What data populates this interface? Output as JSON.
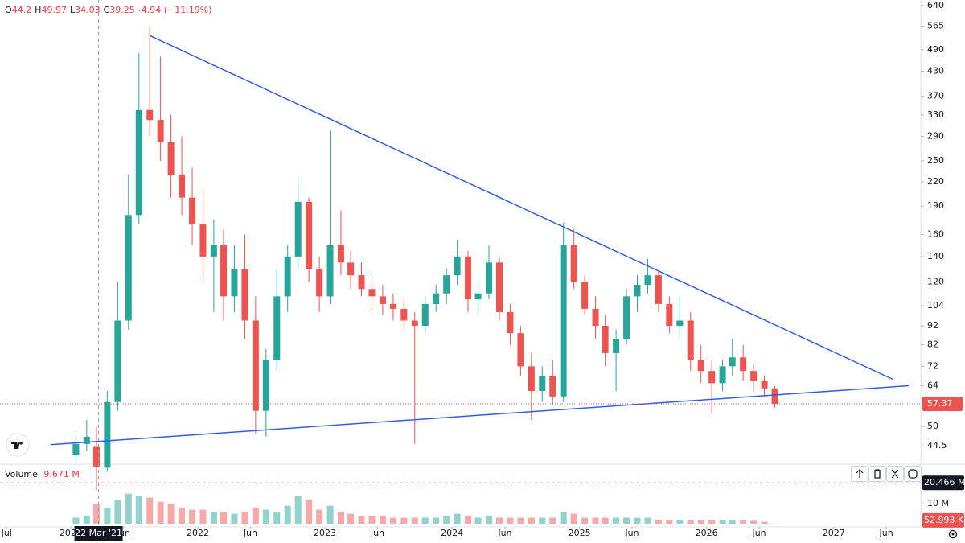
{
  "chart_data": {
    "type": "candlestick",
    "ohlc_legend": [
      {
        "key": "O",
        "value": "44.2"
      },
      {
        "key": "H",
        "value": "49.97"
      },
      {
        "key": "L",
        "value": "34.03"
      },
      {
        "key": "C",
        "value": "39.25"
      }
    ],
    "change_text": "-4.94 (−11.19%)",
    "x": [
      "2021-01",
      "2021-02",
      "2021-03",
      "2021-04",
      "2021-05",
      "2021-06",
      "2021-07",
      "2021-08",
      "2021-09",
      "2021-10",
      "2021-11",
      "2021-12",
      "2022-01",
      "2022-02",
      "2022-03",
      "2022-04",
      "2022-05",
      "2022-06",
      "2022-07",
      "2022-08",
      "2022-09",
      "2022-10",
      "2022-11",
      "2022-12",
      "2023-01",
      "2023-02",
      "2023-03",
      "2023-04",
      "2023-05",
      "2023-06",
      "2023-07",
      "2023-08",
      "2023-09",
      "2023-10",
      "2023-11",
      "2023-12",
      "2024-01",
      "2024-02",
      "2024-03",
      "2024-04",
      "2024-05",
      "2024-06",
      "2024-07",
      "2024-08",
      "2024-09",
      "2024-10",
      "2024-11",
      "2024-12",
      "2025-01",
      "2025-02",
      "2025-03",
      "2025-04",
      "2025-05",
      "2025-06",
      "2025-07",
      "2025-08",
      "2025-09",
      "2025-10",
      "2025-11",
      "2025-12",
      "2026-01",
      "2026-02",
      "2026-03",
      "2026-04",
      "2026-05",
      "2026-06",
      "2026-07"
    ],
    "open": [
      42,
      45,
      44.2,
      39,
      58,
      95,
      180,
      340,
      320,
      280,
      230,
      200,
      170,
      140,
      150,
      110,
      130,
      95,
      55,
      75,
      110,
      140,
      195,
      130,
      110,
      150,
      135,
      125,
      115,
      110,
      105,
      102,
      95,
      92,
      105,
      112,
      125,
      140,
      108,
      112,
      135,
      100,
      88,
      72,
      62,
      68,
      60,
      150,
      120,
      102,
      92,
      78,
      85,
      110,
      118,
      125,
      105,
      92,
      95,
      75,
      70,
      65,
      72,
      76,
      70,
      66,
      63
    ],
    "high": [
      48,
      52,
      49.97,
      62,
      120,
      230,
      480,
      565,
      470,
      330,
      290,
      240,
      210,
      175,
      165,
      150,
      160,
      110,
      80,
      130,
      150,
      225,
      200,
      140,
      300,
      185,
      145,
      135,
      125,
      118,
      112,
      108,
      100,
      110,
      118,
      130,
      155,
      145,
      120,
      150,
      140,
      105,
      92,
      78,
      72,
      75,
      172,
      165,
      125,
      110,
      98,
      90,
      115,
      125,
      138,
      128,
      110,
      110,
      100,
      82,
      75,
      75,
      85,
      82,
      73,
      68,
      64
    ],
    "low": [
      40,
      43,
      34.03,
      38,
      55,
      90,
      170,
      290,
      250,
      200,
      180,
      150,
      120,
      100,
      95,
      100,
      85,
      48,
      47,
      70,
      100,
      130,
      120,
      100,
      105,
      125,
      115,
      110,
      100,
      98,
      95,
      90,
      45,
      88,
      100,
      105,
      118,
      100,
      100,
      108,
      95,
      82,
      68,
      52,
      58,
      57,
      58,
      115,
      98,
      85,
      72,
      62,
      82,
      100,
      112,
      100,
      88,
      85,
      70,
      65,
      54,
      62,
      68,
      66,
      62,
      60,
      56
    ],
    "close": [
      45,
      47,
      39.25,
      58,
      95,
      180,
      340,
      320,
      280,
      230,
      200,
      170,
      140,
      150,
      110,
      130,
      95,
      55,
      75,
      110,
      140,
      195,
      130,
      110,
      150,
      135,
      125,
      115,
      110,
      105,
      102,
      95,
      92,
      105,
      112,
      125,
      140,
      108,
      112,
      135,
      100,
      88,
      72,
      62,
      68,
      60,
      150,
      120,
      102,
      92,
      78,
      85,
      110,
      118,
      125,
      105,
      92,
      95,
      75,
      70,
      65,
      72,
      76,
      70,
      66,
      63,
      57.37
    ],
    "volume": [
      3000000,
      4000000,
      9671000,
      8000000,
      12000000,
      15000000,
      14000000,
      13000000,
      11000000,
      10000000,
      8000000,
      7000000,
      7000000,
      6000000,
      6000000,
      5000000,
      6000000,
      8000000,
      7000000,
      6000000,
      9000000,
      14000000,
      12000000,
      7000000,
      9000000,
      6000000,
      5000000,
      4000000,
      4000000,
      4000000,
      3000000,
      3000000,
      3000000,
      3000000,
      3000000,
      4000000,
      5000000,
      4000000,
      3000000,
      4000000,
      3000000,
      3000000,
      3000000,
      3000000,
      3000000,
      3000000,
      6000000,
      5000000,
      3000000,
      3000000,
      3000000,
      3000000,
      3000000,
      3000000,
      3000000,
      2000000,
      2000000,
      2000000,
      2000000,
      2000000,
      2000000,
      2000000,
      2000000,
      2000000,
      1500000,
      1000000,
      52993
    ],
    "up_color": "#26a69a",
    "down_color": "#ef5350",
    "log_scale": true,
    "grid": false,
    "xlim": [
      "2020-06-12",
      "2027-09-08"
    ],
    "xticks": [
      {
        "value": "2020-07",
        "label": "Jul"
      },
      {
        "value": "2021-01",
        "label": "2021"
      },
      {
        "value": "2021-06",
        "label": "Jun"
      },
      {
        "value": "2022-01",
        "label": "2022"
      },
      {
        "value": "2022-06",
        "label": "Jun"
      },
      {
        "value": "2023-01",
        "label": "2023"
      },
      {
        "value": "2023-06",
        "label": "Jun"
      },
      {
        "value": "2024-01",
        "label": "2024"
      },
      {
        "value": "2024-06",
        "label": "Jun"
      },
      {
        "value": "2025-01",
        "label": "2025"
      },
      {
        "value": "2025-06",
        "label": "Jun"
      },
      {
        "value": "2026-01",
        "label": "2026"
      },
      {
        "value": "2026-06",
        "label": "Jun"
      },
      {
        "value": "2027-01",
        "label": "2027"
      },
      {
        "value": "2027-06",
        "label": "Jun"
      }
    ],
    "ylim": [
      40.2,
      662
    ],
    "yticks": [
      640,
      565,
      490,
      430,
      370,
      330,
      290,
      250,
      220,
      190,
      160,
      140,
      120,
      104,
      92,
      82,
      72,
      64,
      50,
      44.5
    ],
    "last_price": 57.37,
    "volume_title": "Volume",
    "volume_legend": {
      "value": 9671000,
      "label": "9.671 M"
    },
    "y2lim": [
      0,
      28600000
    ],
    "y2ticks": [
      {
        "value": 10000000,
        "label": "10 M"
      }
    ],
    "volume_marker": {
      "value": 20466000,
      "label": "20.466 M"
    },
    "last_volume_label": "52.993 K",
    "crosshair": {
      "x": "2021-03-22",
      "label": "22 Mar '21"
    },
    "trendlines": [
      {
        "color": "#2f5de8",
        "x": [
          "2021-08-15",
          "2027-06-19"
        ],
        "y": [
          534,
          66.6
        ]
      },
      {
        "color": "#2f5de8",
        "x": [
          "2020-11-04",
          "2027-08-04"
        ],
        "y": [
          44.8,
          64
        ]
      }
    ]
  }
}
